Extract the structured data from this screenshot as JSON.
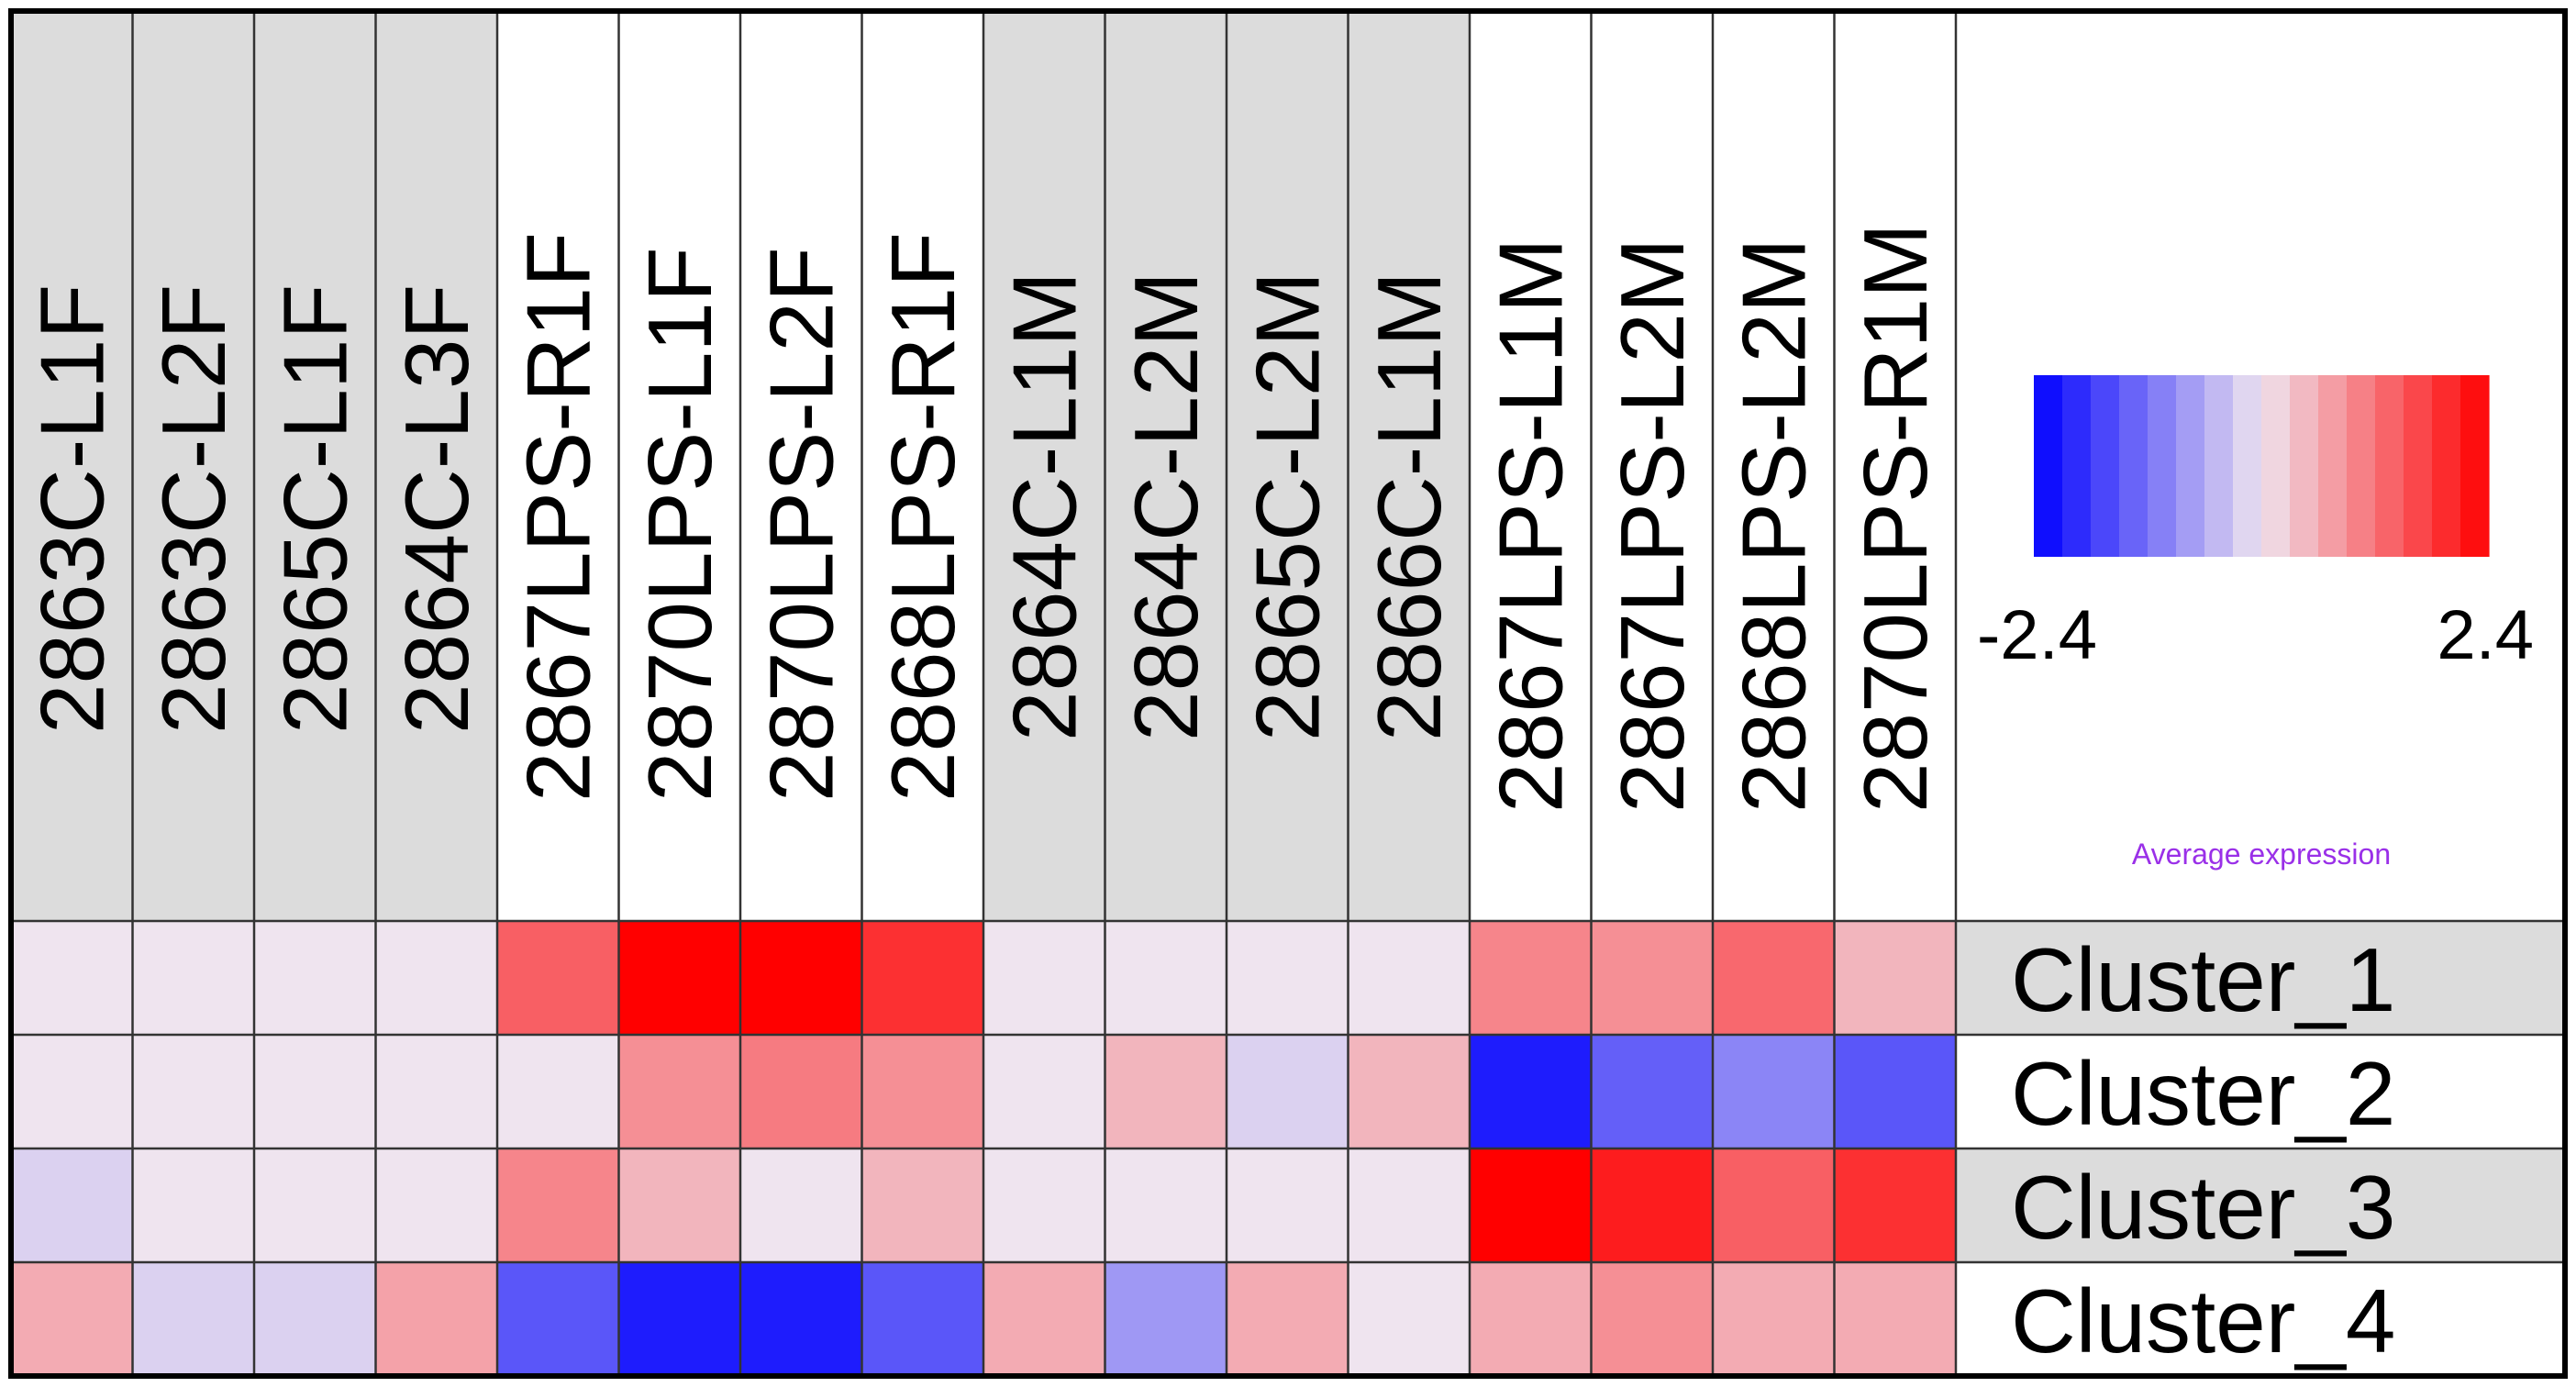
{
  "chart_data": {
    "type": "heatmap",
    "columns": [
      "2863C-L1F",
      "2863C-L2F",
      "2865C-L1F",
      "2864C-L3F",
      "2867LPS-R1F",
      "2870LPS-L1F",
      "2870LPS-L2F",
      "2868LPS-R1F",
      "2864C-L1M",
      "2864C-L2M",
      "2865C-L2M",
      "2866C-L1M",
      "2867LPS-L1M",
      "2867LPS-L2M",
      "2868LPS-L2M",
      "2870LPS-R1M"
    ],
    "column_groups": [
      "control",
      "control",
      "control",
      "control",
      "lps",
      "lps",
      "lps",
      "lps",
      "control",
      "control",
      "control",
      "control",
      "lps",
      "lps",
      "lps",
      "lps"
    ],
    "rows": [
      "Cluster_1",
      "Cluster_2",
      "Cluster_3",
      "Cluster_4"
    ],
    "values": [
      [
        0.0,
        0.0,
        0.0,
        0.0,
        1.4,
        2.4,
        2.4,
        1.9,
        0.0,
        0.0,
        0.0,
        0.0,
        1.0,
        0.9,
        1.3,
        0.5
      ],
      [
        0.0,
        0.0,
        0.0,
        0.0,
        0.0,
        0.9,
        1.1,
        0.9,
        0.0,
        0.5,
        -0.2,
        0.5,
        -2.1,
        -1.4,
        -1.0,
        -1.5
      ],
      [
        -0.2,
        0.0,
        0.0,
        0.0,
        1.0,
        0.5,
        0.0,
        0.5,
        0.0,
        0.0,
        0.0,
        0.0,
        2.4,
        2.1,
        1.4,
        1.9
      ],
      [
        0.6,
        -0.2,
        -0.2,
        0.7,
        -1.5,
        -2.1,
        -2.1,
        -1.5,
        0.6,
        -0.8,
        0.6,
        0.0,
        0.6,
        0.9,
        0.6,
        0.6
      ]
    ],
    "legend": {
      "title": "Average expression",
      "min": -2.4,
      "max": 2.4,
      "min_label": "-2.4",
      "max_label": "2.4",
      "steps": 16,
      "low_color": "#0000ff",
      "mid_color": "#efe4ef",
      "high_color": "#ff0000",
      "title_color": "#9a30e8"
    },
    "colors": {
      "control_header_bg": "#dcdcdc",
      "lps_header_bg": "#ffffff",
      "row_label_bg_odd": "#dcdcdc",
      "row_label_bg_even": "#ffffff",
      "grid_line": "#333333",
      "border": "#000000"
    }
  }
}
